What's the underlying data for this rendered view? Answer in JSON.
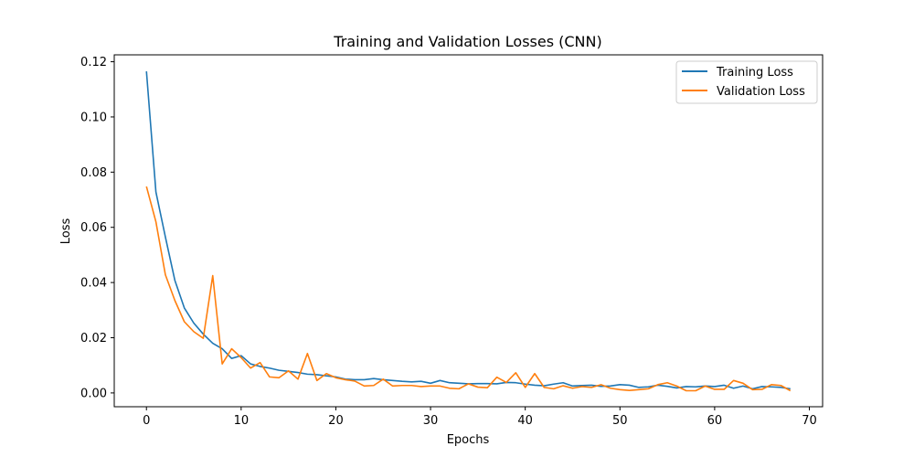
{
  "chart_data": {
    "type": "line",
    "title": "Training and Validation Losses (CNN)",
    "xlabel": "Epochs",
    "ylabel": "Loss",
    "xlim": [
      -3.4,
      71.4
    ],
    "ylim": [
      -0.005,
      0.1225
    ],
    "xticks": [
      0,
      10,
      20,
      30,
      40,
      50,
      60,
      70
    ],
    "xtick_labels": [
      "0",
      "10",
      "20",
      "30",
      "40",
      "50",
      "60",
      "70"
    ],
    "yticks": [
      0.0,
      0.02,
      0.04,
      0.06,
      0.08,
      0.1,
      0.12
    ],
    "ytick_labels": [
      "0.00",
      "0.02",
      "0.04",
      "0.06",
      "0.08",
      "0.10",
      "0.12"
    ],
    "grid": false,
    "legend_position": "top-right",
    "series": [
      {
        "name": "Training Loss",
        "color": "#1f77b4",
        "values": [
          0.1165,
          0.0728,
          0.0565,
          0.0408,
          0.0308,
          0.0253,
          0.0213,
          0.018,
          0.016,
          0.0125,
          0.0135,
          0.0105,
          0.0096,
          0.009,
          0.0082,
          0.0078,
          0.0074,
          0.0068,
          0.0066,
          0.0062,
          0.0058,
          0.005,
          0.0048,
          0.0048,
          0.0052,
          0.0048,
          0.0045,
          0.0042,
          0.004,
          0.0042,
          0.0035,
          0.0045,
          0.0037,
          0.0035,
          0.0033,
          0.0034,
          0.0034,
          0.0033,
          0.0038,
          0.0037,
          0.0032,
          0.0028,
          0.0026,
          0.0032,
          0.0037,
          0.0025,
          0.0027,
          0.0028,
          0.0024,
          0.0025,
          0.003,
          0.0028,
          0.002,
          0.0022,
          0.0028,
          0.0024,
          0.0018,
          0.0023,
          0.0022,
          0.0025,
          0.0023,
          0.0028,
          0.0017,
          0.0025,
          0.0015,
          0.0023,
          0.0022,
          0.002,
          0.0015
        ]
      },
      {
        "name": "Validation Loss",
        "color": "#ff7f0e",
        "values": [
          0.0748,
          0.062,
          0.0428,
          0.0335,
          0.0258,
          0.0222,
          0.0198,
          0.0425,
          0.0105,
          0.016,
          0.0128,
          0.009,
          0.011,
          0.0058,
          0.0055,
          0.008,
          0.005,
          0.0143,
          0.0045,
          0.007,
          0.0055,
          0.0048,
          0.0043,
          0.0025,
          0.0027,
          0.005,
          0.0025,
          0.0027,
          0.0027,
          0.0023,
          0.0025,
          0.0025,
          0.0017,
          0.0015,
          0.0033,
          0.0021,
          0.0019,
          0.0057,
          0.0038,
          0.0073,
          0.002,
          0.007,
          0.002,
          0.0015,
          0.0026,
          0.0017,
          0.0023,
          0.002,
          0.003,
          0.0017,
          0.0012,
          0.0009,
          0.0012,
          0.0015,
          0.003,
          0.0037,
          0.0025,
          0.0008,
          0.0008,
          0.0025,
          0.0013,
          0.0013,
          0.0045,
          0.0035,
          0.0012,
          0.0013,
          0.003,
          0.0027,
          0.0008
        ]
      }
    ]
  }
}
